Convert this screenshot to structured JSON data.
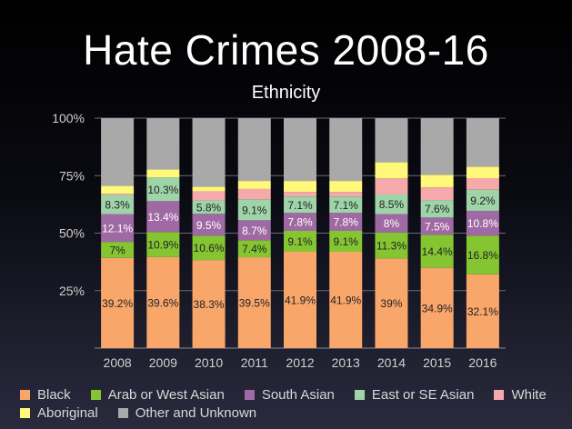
{
  "colors": {
    "Black": "#f9a66b",
    "Arab or West Asian": "#86c532",
    "South Asian": "#9f6aa3",
    "East or SE Asian": "#9ed4a8",
    "White": "#f6a9aa",
    "Aboriginal": "#fff87a",
    "Other and Unknown": "#a9a9a9"
  },
  "chart_data": {
    "type": "bar",
    "stacked": true,
    "title": "Hate Crimes 2008-16",
    "subtitle": "Ethnicity",
    "categories": [
      "2008",
      "2009",
      "2010",
      "2011",
      "2012",
      "2013",
      "2014",
      "2015",
      "2016"
    ],
    "ylim": [
      0,
      100
    ],
    "yticks": [
      25,
      50,
      75,
      100
    ],
    "ytick_labels": [
      "25%",
      "50%",
      "75%",
      "100%"
    ],
    "grid": true,
    "legend_position": "bottom",
    "series": [
      {
        "name": "Black",
        "values": [
          39.2,
          39.6,
          38.3,
          39.5,
          41.9,
          41.9,
          39.0,
          34.9,
          32.1
        ],
        "labels": [
          "39.2%",
          "39.6%",
          "38.3%",
          "39.5%",
          "41.9%",
          "41.9%",
          "39%",
          "34.9%",
          "32.1%"
        ]
      },
      {
        "name": "Arab or West Asian",
        "values": [
          7.0,
          10.9,
          10.6,
          7.4,
          9.1,
          9.1,
          11.3,
          14.4,
          16.8
        ],
        "labels": [
          "7%",
          "10.9%",
          "10.6%",
          "7.4%",
          "9.1%",
          "9.1%",
          "11.3%",
          "14.4%",
          "16.8%"
        ]
      },
      {
        "name": "South Asian",
        "values": [
          12.1,
          13.4,
          9.5,
          8.7,
          7.8,
          7.8,
          8.0,
          7.5,
          10.8
        ],
        "labels": [
          "12.1%",
          "13.4%",
          "9.5%",
          "8.7%",
          "7.8%",
          "7.8%",
          "8%",
          "7.5%",
          "10.8%"
        ]
      },
      {
        "name": "East or SE Asian",
        "values": [
          8.3,
          10.3,
          5.8,
          9.1,
          7.1,
          7.1,
          8.5,
          7.6,
          9.2
        ],
        "labels": [
          "8.3%",
          "10.3%",
          "5.8%",
          "9.1%",
          "7.1%",
          "7.1%",
          "8.5%",
          "7.6%",
          "9.2%"
        ]
      },
      {
        "name": "White",
        "values": [
          0.5,
          0.0,
          4.0,
          4.5,
          2.0,
          2.0,
          7.0,
          5.5,
          5.0
        ],
        "labels": []
      },
      {
        "name": "Aboriginal",
        "values": [
          3.5,
          3.5,
          2.0,
          3.5,
          4.8,
          4.8,
          7.0,
          5.5,
          5.0
        ],
        "labels": []
      },
      {
        "name": "Other and Unknown",
        "values": [
          29.4,
          22.3,
          29.8,
          27.3,
          27.3,
          27.3,
          19.2,
          24.6,
          21.1
        ],
        "labels": []
      }
    ]
  }
}
